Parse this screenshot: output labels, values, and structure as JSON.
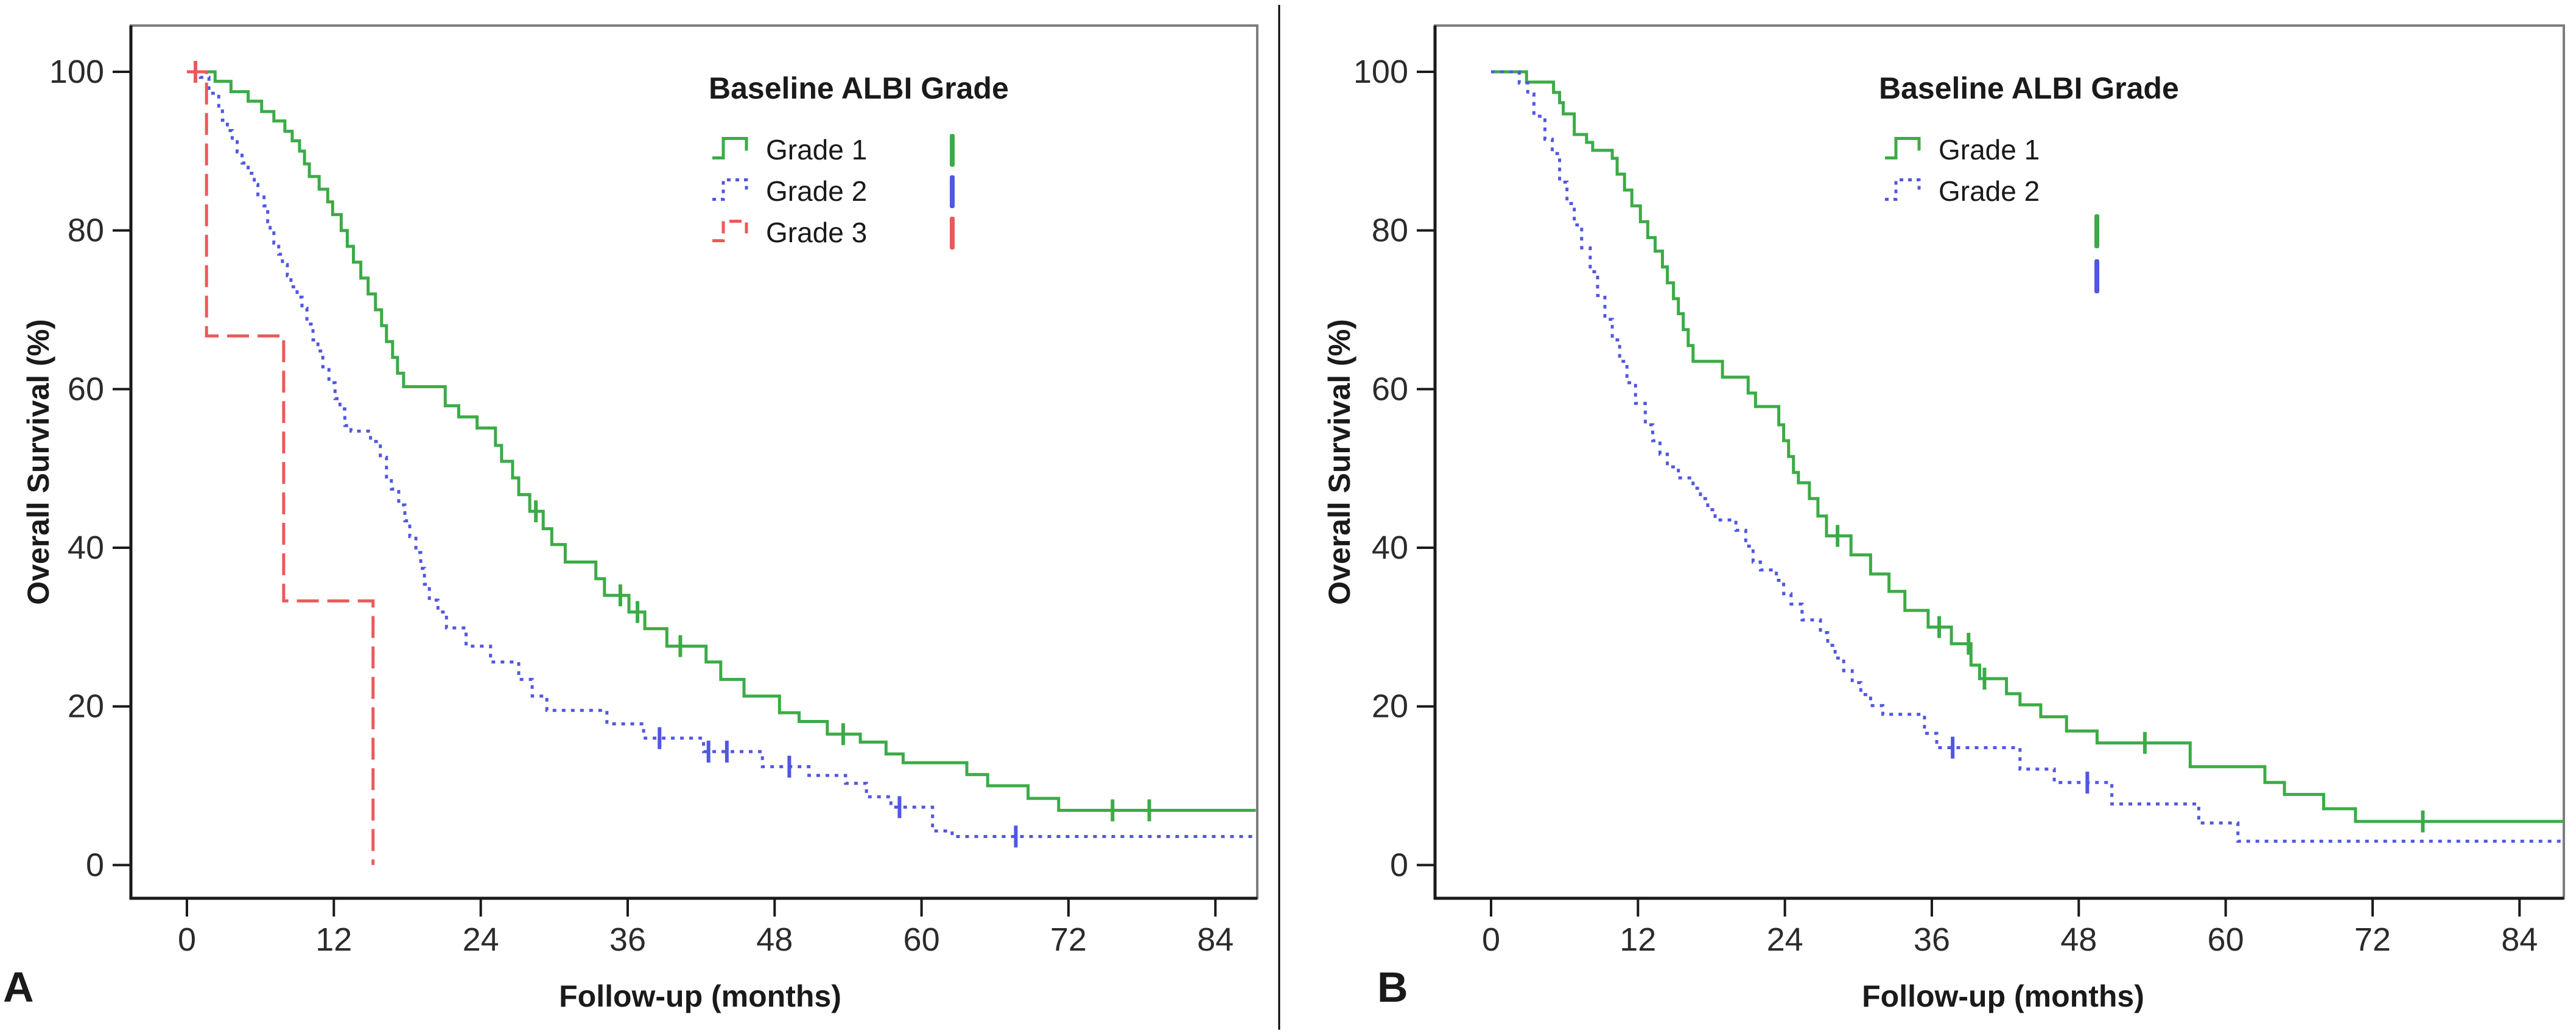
{
  "figure": {
    "background": "#ffffff",
    "divider_color": "#000000",
    "panels": [
      {
        "letter": "A"
      },
      {
        "letter": "B"
      }
    ]
  },
  "chart_data": [
    {
      "panel": "A",
      "type": "line",
      "subtype": "kaplan-meier-step",
      "title": "",
      "xlabel": "Follow-up (months)",
      "ylabel": "Overall Survival (%)",
      "legend_title": "Baseline ALBI Grade",
      "legend_position": "top-right-inside",
      "grid": false,
      "xticks": [
        0,
        12,
        24,
        36,
        48,
        60,
        72,
        84
      ],
      "yticks": [
        0,
        20,
        40,
        60,
        80,
        100
      ],
      "xlim": [
        -4.6,
        87.4
      ],
      "ylim": [
        -4.2,
        105.8
      ],
      "axis_color": "#1a1a1a",
      "frame_color": "#7d7d7d",
      "tick_label_color": "#2b2b2b",
      "series": [
        {
          "name": "Grade 1",
          "color": "#3cab47",
          "line_style": "solid",
          "end_month": 87.3,
          "points": [
            [
              0,
              100
            ],
            [
              2.3,
              98.8
            ],
            [
              3.6,
              97.5
            ],
            [
              5.0,
              96.3
            ],
            [
              6.1,
              95.0
            ],
            [
              7.1,
              93.8
            ],
            [
              8.0,
              92.5
            ],
            [
              8.6,
              91.3
            ],
            [
              9.2,
              90.0
            ],
            [
              9.6,
              88.4
            ],
            [
              10.0,
              86.8
            ],
            [
              10.8,
              85.2
            ],
            [
              11.5,
              83.6
            ],
            [
              11.9,
              82.0
            ],
            [
              12.6,
              80.0
            ],
            [
              13.1,
              78.0
            ],
            [
              13.6,
              76.0
            ],
            [
              14.2,
              74.0
            ],
            [
              14.8,
              72.0
            ],
            [
              15.4,
              70.0
            ],
            [
              15.9,
              68.0
            ],
            [
              16.3,
              66.0
            ],
            [
              16.8,
              64.0
            ],
            [
              17.2,
              62.0
            ],
            [
              17.7,
              60.3
            ],
            [
              21.1,
              57.9
            ],
            [
              22.2,
              56.5
            ],
            [
              23.7,
              55.1
            ],
            [
              25.2,
              52.9
            ],
            [
              25.7,
              50.9
            ],
            [
              26.6,
              48.8
            ],
            [
              27.1,
              46.7
            ],
            [
              28.0,
              44.6
            ],
            [
              29.1,
              42.4
            ],
            [
              29.8,
              40.4
            ],
            [
              30.9,
              38.2
            ],
            [
              33.4,
              36.1
            ],
            [
              34.1,
              34.0
            ],
            [
              36.1,
              31.9
            ],
            [
              37.4,
              29.8
            ],
            [
              39.2,
              27.6
            ],
            [
              42.4,
              25.6
            ],
            [
              43.6,
              23.4
            ],
            [
              45.5,
              21.3
            ],
            [
              48.4,
              19.2
            ],
            [
              50.0,
              18.1
            ],
            [
              52.3,
              16.5
            ],
            [
              55.0,
              15.5
            ],
            [
              57.1,
              14.0
            ],
            [
              58.5,
              12.9
            ],
            [
              63.7,
              11.4
            ],
            [
              65.4,
              10.0
            ],
            [
              68.7,
              8.4
            ],
            [
              71.2,
              6.9
            ]
          ],
          "censored": [
            [
              28.5,
              44.6
            ],
            [
              35.4,
              34.0
            ],
            [
              36.8,
              31.9
            ],
            [
              40.3,
              27.6
            ],
            [
              53.6,
              16.5
            ],
            [
              75.6,
              6.9
            ],
            [
              78.6,
              6.9
            ]
          ]
        },
        {
          "name": "Grade 2",
          "color": "#5157e2",
          "line_style": "dotted",
          "end_month": 87.3,
          "points": [
            [
              0,
              100
            ],
            [
              1.1,
              99.3
            ],
            [
              1.8,
              97.3
            ],
            [
              2.6,
              95.3
            ],
            [
              2.9,
              93.9
            ],
            [
              3.3,
              92.6
            ],
            [
              3.7,
              91.2
            ],
            [
              4.1,
              89.9
            ],
            [
              4.5,
              88.5
            ],
            [
              5.0,
              87.2
            ],
            [
              5.5,
              85.8
            ],
            [
              5.8,
              84.5
            ],
            [
              6.3,
              83.1
            ],
            [
              6.6,
              81.1
            ],
            [
              6.8,
              79.7
            ],
            [
              7.1,
              78.4
            ],
            [
              7.5,
              77.0
            ],
            [
              7.8,
              75.7
            ],
            [
              8.2,
              74.3
            ],
            [
              8.5,
              72.9
            ],
            [
              9.0,
              71.6
            ],
            [
              9.4,
              70.2
            ],
            [
              9.8,
              68.2
            ],
            [
              10.3,
              66.2
            ],
            [
              10.7,
              64.8
            ],
            [
              11.1,
              62.8
            ],
            [
              11.6,
              60.8
            ],
            [
              12.1,
              58.8
            ],
            [
              12.5,
              57.5
            ],
            [
              12.9,
              55.4
            ],
            [
              13.4,
              54.7
            ],
            [
              15.0,
              53.4
            ],
            [
              15.8,
              51.4
            ],
            [
              16.3,
              48.7
            ],
            [
              16.7,
              47.4
            ],
            [
              17.3,
              45.4
            ],
            [
              17.8,
              43.4
            ],
            [
              18.2,
              41.4
            ],
            [
              18.7,
              39.4
            ],
            [
              19.1,
              37.4
            ],
            [
              19.4,
              35.4
            ],
            [
              19.8,
              33.4
            ],
            [
              20.5,
              31.9
            ],
            [
              21.2,
              29.9
            ],
            [
              22.8,
              27.6
            ],
            [
              24.8,
              25.6
            ],
            [
              27.1,
              23.4
            ],
            [
              28.2,
              21.3
            ],
            [
              29.4,
              19.5
            ],
            [
              34.3,
              17.8
            ],
            [
              37.3,
              16.0
            ],
            [
              42.2,
              14.3
            ],
            [
              47.0,
              12.4
            ],
            [
              50.8,
              11.3
            ],
            [
              53.8,
              10.3
            ],
            [
              55.5,
              8.6
            ],
            [
              57.5,
              7.3
            ],
            [
              60.9,
              4.3
            ],
            [
              62.5,
              3.6
            ]
          ],
          "censored": [
            [
              38.6,
              16.0
            ],
            [
              42.6,
              14.3
            ],
            [
              44.1,
              14.3
            ],
            [
              49.2,
              12.4
            ],
            [
              58.2,
              7.3
            ],
            [
              67.7,
              3.6
            ]
          ]
        },
        {
          "name": "Grade 3",
          "color": "#ea5a5a",
          "line_style": "dashed",
          "end_month": 15.2,
          "points": [
            [
              0,
              100
            ],
            [
              1.6,
              66.7
            ],
            [
              7.9,
              33.3
            ],
            [
              15.2,
              0
            ]
          ],
          "censored": [
            [
              0.7,
              100
            ]
          ]
        }
      ]
    },
    {
      "panel": "B",
      "type": "line",
      "subtype": "kaplan-meier-step",
      "title": "",
      "xlabel": "Follow-up (months)",
      "ylabel": "Overall Survival (%)",
      "legend_title": "Baseline ALBI Grade",
      "legend_position": "top-right-inside",
      "grid": false,
      "xticks": [
        0,
        12,
        24,
        36,
        48,
        60,
        72,
        84
      ],
      "yticks": [
        0,
        20,
        40,
        60,
        80,
        100
      ],
      "xlim": [
        -4.6,
        87.6
      ],
      "ylim": [
        -4.2,
        105.8
      ],
      "axis_color": "#1a1a1a",
      "frame_color": "#7d7d7d",
      "tick_label_color": "#2b2b2b",
      "series": [
        {
          "name": "Grade 1",
          "color": "#3cab47",
          "line_style": "solid",
          "end_month": 87.6,
          "points": [
            [
              0,
              100
            ],
            [
              2.9,
              98.7
            ],
            [
              5.1,
              97.4
            ],
            [
              5.6,
              96.1
            ],
            [
              5.9,
              94.7
            ],
            [
              6.8,
              92.1
            ],
            [
              7.8,
              91.1
            ],
            [
              8.3,
              90.1
            ],
            [
              9.9,
              89.1
            ],
            [
              10.3,
              87.1
            ],
            [
              10.9,
              85.1
            ],
            [
              11.5,
              83.1
            ],
            [
              12.2,
              81.1
            ],
            [
              12.8,
              79.1
            ],
            [
              13.4,
              77.4
            ],
            [
              14.0,
              75.4
            ],
            [
              14.4,
              73.4
            ],
            [
              14.9,
              71.4
            ],
            [
              15.3,
              69.5
            ],
            [
              15.7,
              67.5
            ],
            [
              16.1,
              65.5
            ],
            [
              16.5,
              63.5
            ],
            [
              18.9,
              61.5
            ],
            [
              21.0,
              59.5
            ],
            [
              21.6,
              57.8
            ],
            [
              23.5,
              55.5
            ],
            [
              23.9,
              53.5
            ],
            [
              24.3,
              51.5
            ],
            [
              24.7,
              49.5
            ],
            [
              25.1,
              48.2
            ],
            [
              26.0,
              46.2
            ],
            [
              26.7,
              44.0
            ],
            [
              27.4,
              41.5
            ],
            [
              29.4,
              39.1
            ],
            [
              31.0,
              36.7
            ],
            [
              32.5,
              34.5
            ],
            [
              33.8,
              32.1
            ],
            [
              35.7,
              30.0
            ],
            [
              37.6,
              27.9
            ],
            [
              39.2,
              25.2
            ],
            [
              39.9,
              23.5
            ],
            [
              42.1,
              21.6
            ],
            [
              43.2,
              20.2
            ],
            [
              44.9,
              18.7
            ],
            [
              47.0,
              16.9
            ],
            [
              49.5,
              15.4
            ],
            [
              57.1,
              12.4
            ],
            [
              63.2,
              10.4
            ],
            [
              64.8,
              8.9
            ],
            [
              68.0,
              7.1
            ],
            [
              70.6,
              5.5
            ]
          ],
          "censored": [
            [
              28.3,
              41.5
            ],
            [
              36.6,
              30.0
            ],
            [
              39.0,
              27.9
            ],
            [
              40.3,
              23.5
            ],
            [
              53.4,
              15.4
            ],
            [
              76.1,
              5.5
            ]
          ]
        },
        {
          "name": "Grade 2",
          "color": "#5157e2",
          "line_style": "dotted",
          "end_month": 87.6,
          "points": [
            [
              0,
              100
            ],
            [
              2.3,
              98.6
            ],
            [
              3.0,
              97.2
            ],
            [
              3.5,
              94.4
            ],
            [
              4.4,
              91.5
            ],
            [
              5.0,
              89.7
            ],
            [
              5.6,
              86.1
            ],
            [
              6.2,
              83.4
            ],
            [
              6.8,
              80.7
            ],
            [
              7.4,
              77.8
            ],
            [
              8.1,
              74.8
            ],
            [
              8.7,
              71.8
            ],
            [
              9.3,
              68.8
            ],
            [
              9.9,
              66.2
            ],
            [
              10.5,
              63.5
            ],
            [
              11.1,
              60.8
            ],
            [
              11.8,
              58.2
            ],
            [
              12.6,
              55.5
            ],
            [
              13.2,
              53.5
            ],
            [
              13.8,
              51.8
            ],
            [
              14.4,
              50.2
            ],
            [
              15.3,
              48.8
            ],
            [
              16.5,
              47.5
            ],
            [
              17.1,
              46.2
            ],
            [
              17.7,
              44.8
            ],
            [
              18.3,
              43.5
            ],
            [
              20.0,
              42.2
            ],
            [
              20.8,
              40.2
            ],
            [
              21.4,
              38.2
            ],
            [
              22.0,
              37.2
            ],
            [
              23.3,
              35.9
            ],
            [
              23.9,
              34.2
            ],
            [
              24.5,
              32.9
            ],
            [
              25.4,
              30.9
            ],
            [
              26.9,
              29.3
            ],
            [
              27.5,
              27.7
            ],
            [
              28.1,
              26.1
            ],
            [
              28.8,
              24.5
            ],
            [
              29.5,
              23.0
            ],
            [
              30.2,
              21.5
            ],
            [
              31.0,
              20.1
            ],
            [
              32.0,
              19.0
            ],
            [
              35.4,
              16.6
            ],
            [
              36.4,
              14.8
            ],
            [
              43.2,
              12.1
            ],
            [
              46.0,
              10.4
            ],
            [
              50.7,
              7.7
            ],
            [
              57.8,
              5.3
            ],
            [
              61.0,
              3.0
            ]
          ],
          "censored": [
            [
              37.7,
              14.8
            ],
            [
              48.7,
              10.4
            ]
          ]
        }
      ]
    }
  ]
}
